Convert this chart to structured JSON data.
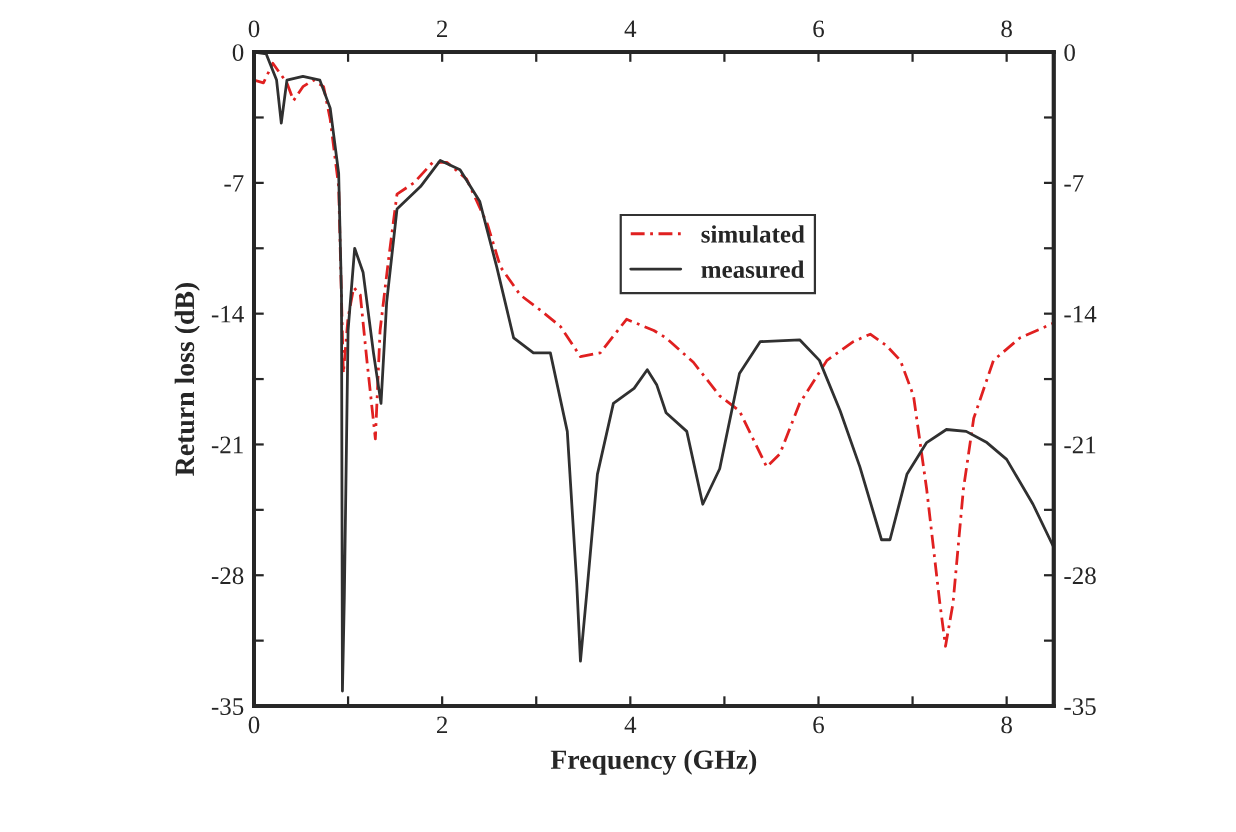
{
  "chart_data": {
    "type": "line",
    "xlabel": "Frequency (GHz)",
    "ylabel": "Return loss (dB)",
    "xlim": [
      0,
      8.5
    ],
    "xticks": [
      0,
      {
        "value": 1,
        "label": null
      },
      2,
      {
        "value": 3,
        "label": null
      },
      4,
      {
        "value": 5,
        "label": null
      },
      6,
      {
        "value": 7,
        "label": null
      },
      8
    ],
    "x2lim": [
      0,
      8.5
    ],
    "x2ticks": [
      0,
      {
        "value": 1,
        "label": null
      },
      2,
      {
        "value": 3,
        "label": null
      },
      4,
      {
        "value": 5,
        "label": null
      },
      6,
      {
        "value": 7,
        "label": null
      },
      8
    ],
    "ylim": [
      -35,
      0
    ],
    "yticks": [
      -35,
      {
        "value": -31.5,
        "label": null
      },
      -28,
      {
        "value": -24.5,
        "label": null
      },
      -21,
      {
        "value": -17.5,
        "label": null
      },
      -14,
      {
        "value": -10.5,
        "label": null
      },
      -7,
      {
        "value": -3.5,
        "label": null
      },
      0
    ],
    "y2lim": [
      -35,
      0
    ],
    "y2ticks": [
      -35,
      {
        "value": -31.5,
        "label": null
      },
      -28,
      {
        "value": -24.5,
        "label": null
      },
      -21,
      {
        "value": -17.5,
        "label": null
      },
      -14,
      {
        "value": -10.5,
        "label": null
      },
      -7,
      {
        "value": -3.5,
        "label": null
      },
      0
    ],
    "grid": false,
    "legend": "top",
    "marker": "none",
    "series": [
      {
        "name": "simulated",
        "color": "#e02020",
        "line_style": "dashed",
        "x": [
          0,
          0.1,
          0.2,
          0.35,
          0.42,
          0.52,
          0.63,
          0.74,
          0.81,
          0.9,
          0.95,
          1.0,
          1.06,
          1.13,
          1.2,
          1.29,
          1.34,
          1.43,
          1.52,
          1.7,
          1.9,
          2.05,
          2.26,
          2.48,
          2.62,
          2.83,
          3.04,
          3.26,
          3.47,
          3.68,
          3.96,
          4.25,
          4.38,
          4.67,
          4.95,
          5.16,
          5.45,
          5.59,
          5.8,
          6.09,
          6.37,
          6.55,
          6.72,
          6.87,
          7.01,
          7.15,
          7.29,
          7.35,
          7.43,
          7.54,
          7.65,
          7.86,
          8.14,
          8.5
        ],
        "values": [
          -1.5,
          -1.65,
          -0.6,
          -1.65,
          -2.6,
          -1.85,
          -1.5,
          -1.85,
          -3.6,
          -7.2,
          -17.2,
          -14.2,
          -12.6,
          -13,
          -16.5,
          -20.7,
          -14.9,
          -11.1,
          -7.6,
          -7,
          -5.9,
          -5.9,
          -6.8,
          -9.2,
          -11.5,
          -13,
          -13.8,
          -14.7,
          -16.3,
          -16.1,
          -14.3,
          -14.9,
          -15.3,
          -16.6,
          -18.4,
          -19.2,
          -22.2,
          -21.5,
          -18.8,
          -16.5,
          -15.5,
          -15.1,
          -15.7,
          -16.5,
          -18.4,
          -23.4,
          -29.5,
          -31.8,
          -29.5,
          -23.4,
          -19.6,
          -16.5,
          -15.3,
          -14.5
        ]
      },
      {
        "name": "measured",
        "color": "#303030",
        "line_style": "solid",
        "x": [
          0,
          0.13,
          0.24,
          0.29,
          0.35,
          0.52,
          0.7,
          0.81,
          0.9,
          0.93,
          0.94,
          0.96,
          1.0,
          1.07,
          1.16,
          1.27,
          1.35,
          1.41,
          1.52,
          1.77,
          1.98,
          2.19,
          2.4,
          2.58,
          2.76,
          2.97,
          3.15,
          3.33,
          3.43,
          3.47,
          3.54,
          3.65,
          3.82,
          4.04,
          4.18,
          4.28,
          4.38,
          4.6,
          4.77,
          4.95,
          5.16,
          5.38,
          5.8,
          6.01,
          6.23,
          6.44,
          6.67,
          6.76,
          6.94,
          7.15,
          7.36,
          7.57,
          7.79,
          8.0,
          8.28,
          8.5
        ],
        "values": [
          0,
          -0.1,
          -1.5,
          -3.8,
          -1.5,
          -1.3,
          -1.5,
          -3,
          -6.5,
          -13,
          -34.2,
          -29.2,
          -14.9,
          -10.5,
          -11.8,
          -16.1,
          -18.8,
          -13.4,
          -8.4,
          -7.2,
          -5.8,
          -6.3,
          -8,
          -11.5,
          -15.3,
          -16.1,
          -16.1,
          -20.3,
          -28.4,
          -32.6,
          -28.8,
          -22.6,
          -18.8,
          -18,
          -17,
          -17.8,
          -19.3,
          -20.3,
          -24.2,
          -22.3,
          -17.2,
          -15.5,
          -15.4,
          -16.5,
          -19.2,
          -22.2,
          -26.1,
          -26.1,
          -22.6,
          -20.9,
          -20.2,
          -20.3,
          -20.9,
          -21.8,
          -24.2,
          -26.5
        ]
      }
    ]
  }
}
